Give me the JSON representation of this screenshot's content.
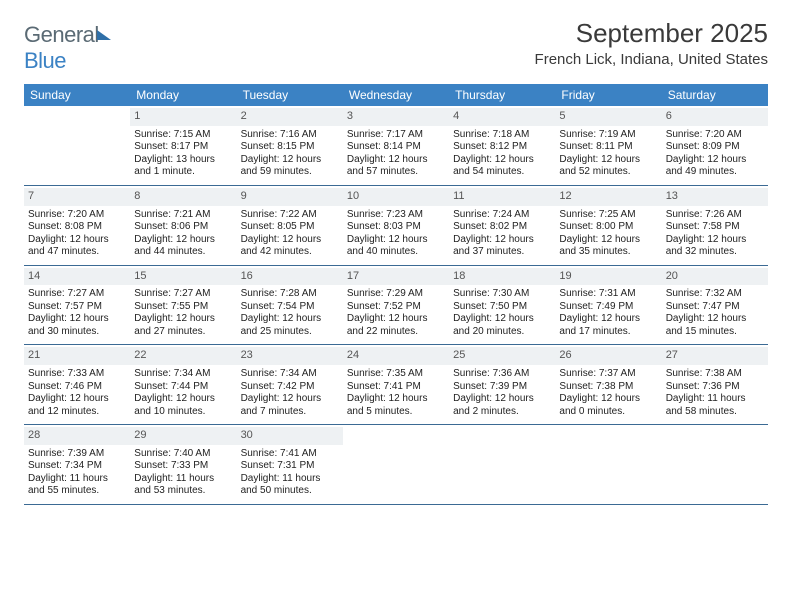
{
  "logo": {
    "part1": "General",
    "part2": "Blue"
  },
  "title": "September 2025",
  "location": "French Lick, Indiana, United States",
  "headers": [
    "Sunday",
    "Monday",
    "Tuesday",
    "Wednesday",
    "Thursday",
    "Friday",
    "Saturday"
  ],
  "colors": {
    "header_bg": "#3b82c4",
    "header_text": "#ffffff",
    "daynum_bg": "#eef1f3",
    "week_border": "#3b6a94",
    "logo_gray": "#5a6a74",
    "logo_blue": "#3b82c4"
  },
  "weeks": [
    [
      null,
      {
        "n": "1",
        "sr": "Sunrise: 7:15 AM",
        "ss": "Sunset: 8:17 PM",
        "dl": "Daylight: 13 hours and 1 minute."
      },
      {
        "n": "2",
        "sr": "Sunrise: 7:16 AM",
        "ss": "Sunset: 8:15 PM",
        "dl": "Daylight: 12 hours and 59 minutes."
      },
      {
        "n": "3",
        "sr": "Sunrise: 7:17 AM",
        "ss": "Sunset: 8:14 PM",
        "dl": "Daylight: 12 hours and 57 minutes."
      },
      {
        "n": "4",
        "sr": "Sunrise: 7:18 AM",
        "ss": "Sunset: 8:12 PM",
        "dl": "Daylight: 12 hours and 54 minutes."
      },
      {
        "n": "5",
        "sr": "Sunrise: 7:19 AM",
        "ss": "Sunset: 8:11 PM",
        "dl": "Daylight: 12 hours and 52 minutes."
      },
      {
        "n": "6",
        "sr": "Sunrise: 7:20 AM",
        "ss": "Sunset: 8:09 PM",
        "dl": "Daylight: 12 hours and 49 minutes."
      }
    ],
    [
      {
        "n": "7",
        "sr": "Sunrise: 7:20 AM",
        "ss": "Sunset: 8:08 PM",
        "dl": "Daylight: 12 hours and 47 minutes."
      },
      {
        "n": "8",
        "sr": "Sunrise: 7:21 AM",
        "ss": "Sunset: 8:06 PM",
        "dl": "Daylight: 12 hours and 44 minutes."
      },
      {
        "n": "9",
        "sr": "Sunrise: 7:22 AM",
        "ss": "Sunset: 8:05 PM",
        "dl": "Daylight: 12 hours and 42 minutes."
      },
      {
        "n": "10",
        "sr": "Sunrise: 7:23 AM",
        "ss": "Sunset: 8:03 PM",
        "dl": "Daylight: 12 hours and 40 minutes."
      },
      {
        "n": "11",
        "sr": "Sunrise: 7:24 AM",
        "ss": "Sunset: 8:02 PM",
        "dl": "Daylight: 12 hours and 37 minutes."
      },
      {
        "n": "12",
        "sr": "Sunrise: 7:25 AM",
        "ss": "Sunset: 8:00 PM",
        "dl": "Daylight: 12 hours and 35 minutes."
      },
      {
        "n": "13",
        "sr": "Sunrise: 7:26 AM",
        "ss": "Sunset: 7:58 PM",
        "dl": "Daylight: 12 hours and 32 minutes."
      }
    ],
    [
      {
        "n": "14",
        "sr": "Sunrise: 7:27 AM",
        "ss": "Sunset: 7:57 PM",
        "dl": "Daylight: 12 hours and 30 minutes."
      },
      {
        "n": "15",
        "sr": "Sunrise: 7:27 AM",
        "ss": "Sunset: 7:55 PM",
        "dl": "Daylight: 12 hours and 27 minutes."
      },
      {
        "n": "16",
        "sr": "Sunrise: 7:28 AM",
        "ss": "Sunset: 7:54 PM",
        "dl": "Daylight: 12 hours and 25 minutes."
      },
      {
        "n": "17",
        "sr": "Sunrise: 7:29 AM",
        "ss": "Sunset: 7:52 PM",
        "dl": "Daylight: 12 hours and 22 minutes."
      },
      {
        "n": "18",
        "sr": "Sunrise: 7:30 AM",
        "ss": "Sunset: 7:50 PM",
        "dl": "Daylight: 12 hours and 20 minutes."
      },
      {
        "n": "19",
        "sr": "Sunrise: 7:31 AM",
        "ss": "Sunset: 7:49 PM",
        "dl": "Daylight: 12 hours and 17 minutes."
      },
      {
        "n": "20",
        "sr": "Sunrise: 7:32 AM",
        "ss": "Sunset: 7:47 PM",
        "dl": "Daylight: 12 hours and 15 minutes."
      }
    ],
    [
      {
        "n": "21",
        "sr": "Sunrise: 7:33 AM",
        "ss": "Sunset: 7:46 PM",
        "dl": "Daylight: 12 hours and 12 minutes."
      },
      {
        "n": "22",
        "sr": "Sunrise: 7:34 AM",
        "ss": "Sunset: 7:44 PM",
        "dl": "Daylight: 12 hours and 10 minutes."
      },
      {
        "n": "23",
        "sr": "Sunrise: 7:34 AM",
        "ss": "Sunset: 7:42 PM",
        "dl": "Daylight: 12 hours and 7 minutes."
      },
      {
        "n": "24",
        "sr": "Sunrise: 7:35 AM",
        "ss": "Sunset: 7:41 PM",
        "dl": "Daylight: 12 hours and 5 minutes."
      },
      {
        "n": "25",
        "sr": "Sunrise: 7:36 AM",
        "ss": "Sunset: 7:39 PM",
        "dl": "Daylight: 12 hours and 2 minutes."
      },
      {
        "n": "26",
        "sr": "Sunrise: 7:37 AM",
        "ss": "Sunset: 7:38 PM",
        "dl": "Daylight: 12 hours and 0 minutes."
      },
      {
        "n": "27",
        "sr": "Sunrise: 7:38 AM",
        "ss": "Sunset: 7:36 PM",
        "dl": "Daylight: 11 hours and 58 minutes."
      }
    ],
    [
      {
        "n": "28",
        "sr": "Sunrise: 7:39 AM",
        "ss": "Sunset: 7:34 PM",
        "dl": "Daylight: 11 hours and 55 minutes."
      },
      {
        "n": "29",
        "sr": "Sunrise: 7:40 AM",
        "ss": "Sunset: 7:33 PM",
        "dl": "Daylight: 11 hours and 53 minutes."
      },
      {
        "n": "30",
        "sr": "Sunrise: 7:41 AM",
        "ss": "Sunset: 7:31 PM",
        "dl": "Daylight: 11 hours and 50 minutes."
      },
      null,
      null,
      null,
      null
    ]
  ]
}
